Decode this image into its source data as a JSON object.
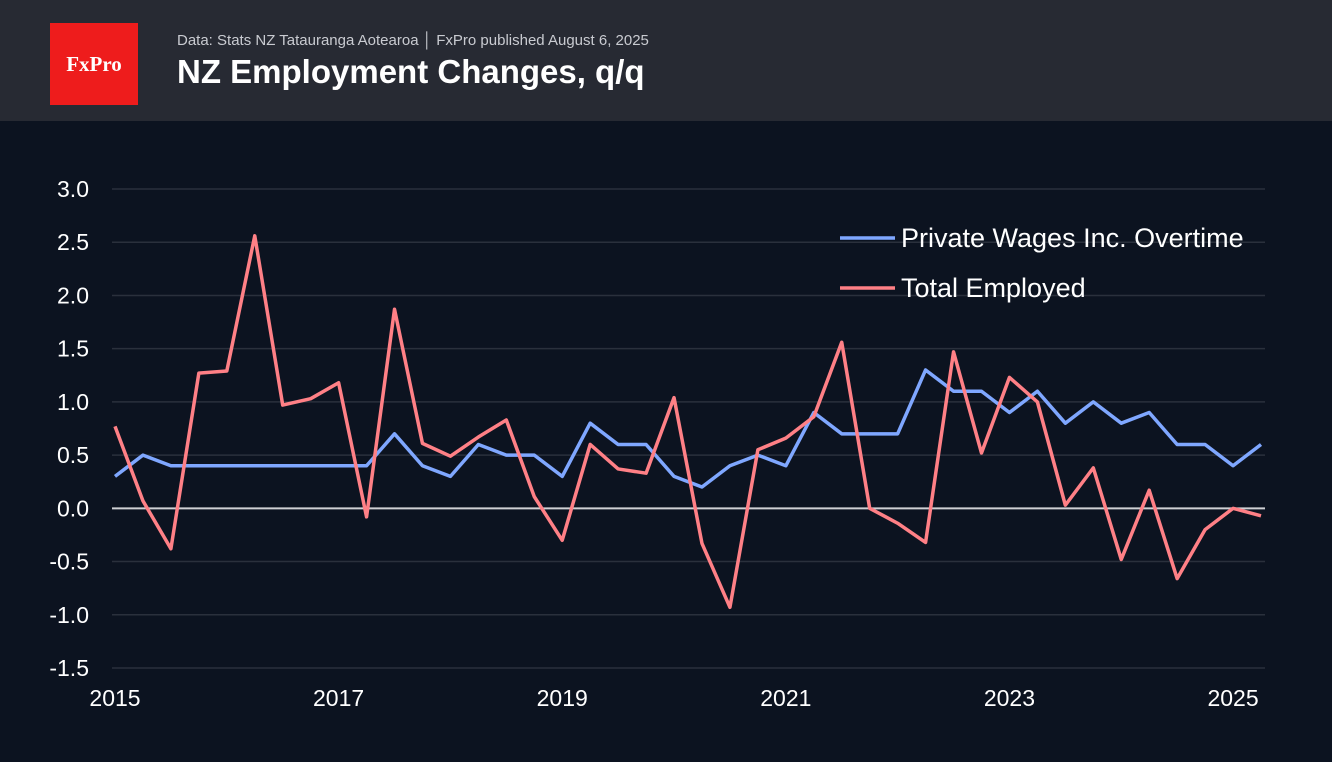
{
  "header": {
    "logo": "FxPro",
    "source": "Data: Stats NZ Tatauranga Aotearoa │ FxPro published August 6, 2025",
    "title": "NZ Employment Changes, q/q"
  },
  "chart_data": {
    "type": "line",
    "title": "NZ Employment Changes, q/q",
    "x_start": "2015 Q1",
    "frequency": "quarterly",
    "x_ticks": [
      "2015",
      "2017",
      "2019",
      "2021",
      "2023",
      "2025"
    ],
    "y_ticks": [
      "3.0",
      "2.5",
      "2.0",
      "1.5",
      "1.0",
      "0.5",
      "0.0",
      "-0.5",
      "-1.0",
      "-1.5"
    ],
    "ylim": [
      -1.5,
      3.0
    ],
    "xlim": [
      2015,
      2025.25
    ],
    "grid": true,
    "legend_placement": "top-right",
    "series": [
      {
        "name": "Private Wages Inc. Overtime",
        "color": "#7fa7ff",
        "values": [
          0.3,
          0.5,
          0.4,
          0.4,
          0.4,
          0.4,
          0.4,
          0.4,
          0.4,
          0.4,
          0.7,
          0.4,
          0.3,
          0.6,
          0.5,
          0.5,
          0.3,
          0.8,
          0.6,
          0.6,
          0.3,
          0.2,
          0.4,
          0.5,
          0.4,
          0.9,
          0.7,
          0.7,
          0.7,
          1.3,
          1.1,
          1.1,
          0.9,
          1.1,
          0.8,
          1.0,
          0.8,
          0.9,
          0.6,
          0.6,
          0.4,
          0.6
        ]
      },
      {
        "name": "Total Employed",
        "color": "#ff8086",
        "values": [
          0.77,
          0.07,
          -0.38,
          1.27,
          1.29,
          2.56,
          0.97,
          1.03,
          1.18,
          -0.08,
          1.87,
          0.61,
          0.49,
          0.67,
          0.83,
          0.11,
          -0.3,
          0.6,
          0.37,
          0.33,
          1.04,
          -0.33,
          -0.93,
          0.55,
          0.66,
          0.86,
          1.56,
          0.0,
          -0.14,
          -0.32,
          1.47,
          0.52,
          1.23,
          1.0,
          0.03,
          0.38,
          -0.48,
          0.17,
          -0.66,
          -0.2,
          0.0,
          -0.07
        ]
      }
    ]
  }
}
